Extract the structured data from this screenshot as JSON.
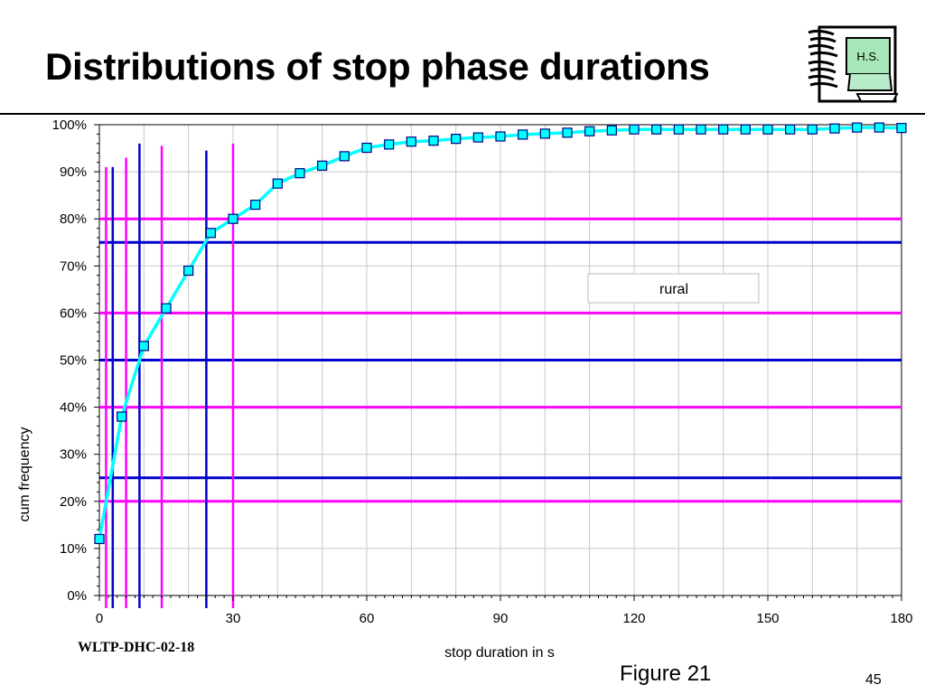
{
  "slide": {
    "title": "Distributions of stop phase durations",
    "footer_code": "WLTP-DHC-02-18",
    "figure_label": "Figure 21",
    "page_number": "45",
    "logo_text": "H.S."
  },
  "chart_data": {
    "type": "line",
    "xlabel": "stop duration in s",
    "ylabel": "cum frequency",
    "xlim": [
      0,
      180
    ],
    "ylim": [
      0,
      1
    ],
    "x_ticks": [
      0,
      30,
      60,
      90,
      120,
      150,
      180
    ],
    "x_tick_labels": [
      "0",
      "30",
      "60",
      "90",
      "120",
      "150",
      "180"
    ],
    "y_ticks": [
      0,
      0.1,
      0.2,
      0.3,
      0.4,
      0.5,
      0.6,
      0.7,
      0.8,
      0.9,
      1.0
    ],
    "y_tick_labels": [
      "0%",
      "10%",
      "20%",
      "30%",
      "40%",
      "50%",
      "60%",
      "70%",
      "80%",
      "90%",
      "100%"
    ],
    "grid": true,
    "legend": {
      "label": "rural",
      "placement": "right"
    },
    "series": [
      {
        "name": "rural",
        "color": "#00FFFF",
        "marker": "square",
        "x": [
          0,
          5,
          10,
          15,
          20,
          25,
          30,
          35,
          40,
          45,
          50,
          55,
          60,
          65,
          70,
          75,
          80,
          85,
          90,
          95,
          100,
          105,
          110,
          115,
          120,
          125,
          130,
          135,
          140,
          145,
          150,
          155,
          160,
          165,
          170,
          175,
          180
        ],
        "y": [
          0.12,
          0.38,
          0.53,
          0.61,
          0.69,
          0.77,
          0.8,
          0.83,
          0.875,
          0.897,
          0.913,
          0.933,
          0.951,
          0.958,
          0.964,
          0.966,
          0.97,
          0.973,
          0.975,
          0.979,
          0.981,
          0.983,
          0.986,
          0.988,
          0.99,
          0.99,
          0.99,
          0.99,
          0.99,
          0.99,
          0.99,
          0.99,
          0.99,
          0.992,
          0.994,
          0.994,
          0.993
        ]
      }
    ],
    "reference_lines": {
      "horizontal": [
        {
          "y": 0.2,
          "color": "#FF00FF"
        },
        {
          "y": 0.25,
          "color": "#0000CC"
        },
        {
          "y": 0.4,
          "color": "#FF00FF"
        },
        {
          "y": 0.5,
          "color": "#0000CC"
        },
        {
          "y": 0.6,
          "color": "#FF00FF"
        },
        {
          "y": 0.75,
          "color": "#0000CC"
        },
        {
          "y": 0.8,
          "color": "#FF00FF"
        }
      ],
      "vertical": [
        {
          "x": 1.5,
          "y_top": 0.91,
          "color": "#FF00FF"
        },
        {
          "x": 3.0,
          "y_top": 0.91,
          "color": "#0000CC"
        },
        {
          "x": 6.0,
          "y_top": 0.93,
          "color": "#FF00FF"
        },
        {
          "x": 9.0,
          "y_top": 0.96,
          "color": "#0000CC"
        },
        {
          "x": 14.0,
          "y_top": 0.955,
          "color": "#FF00FF"
        },
        {
          "x": 24.0,
          "y_top": 0.945,
          "color": "#0000CC"
        },
        {
          "x": 30.0,
          "y_top": 0.96,
          "color": "#FF00FF"
        }
      ]
    }
  }
}
